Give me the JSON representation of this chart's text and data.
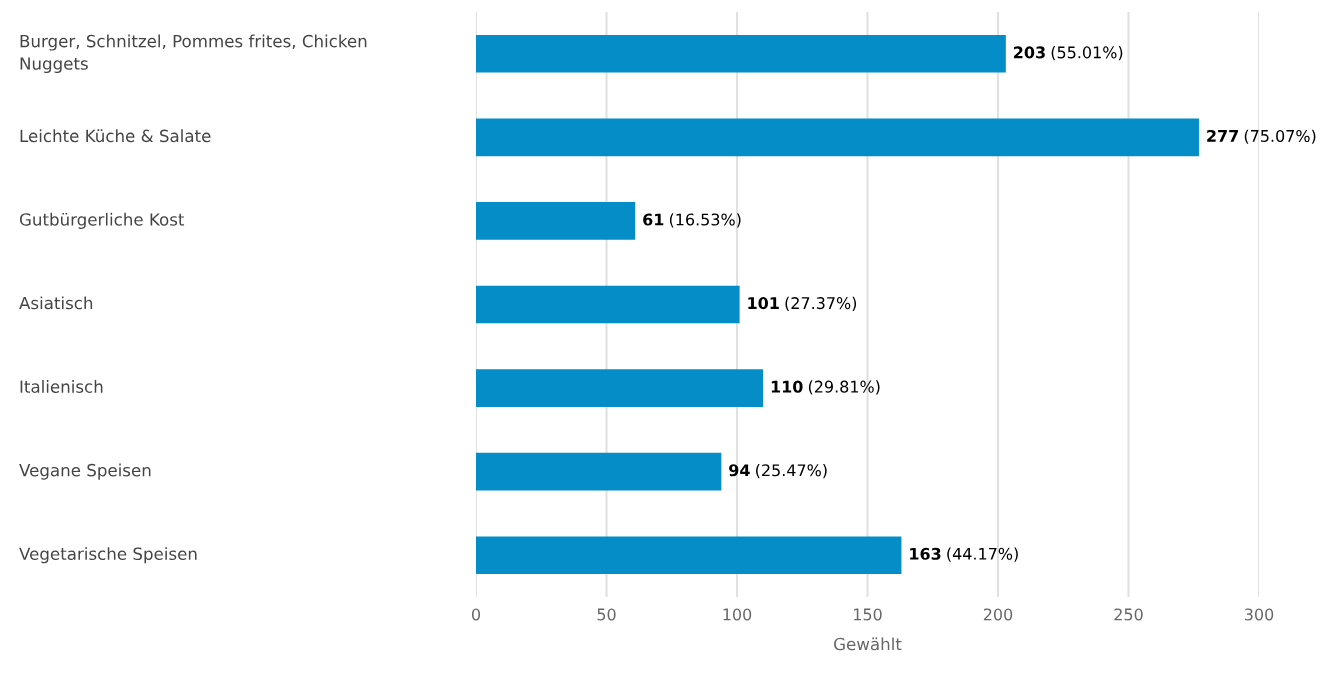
{
  "chart_data": {
    "type": "bar",
    "orientation": "horizontal",
    "categories": [
      "Burger, Schnitzel, Pommes frites, Chicken Nuggets",
      "Leichte Küche & Salate",
      "Gutbürgerliche Kost",
      "Asiatisch",
      "Italienisch",
      "Vegane Speisen",
      "Vegetarische Speisen"
    ],
    "values": [
      203,
      277,
      61,
      101,
      110,
      94,
      163
    ],
    "value_labels": [
      "203 (55.01%)",
      "277 (75.07%)",
      "61 (16.53%)",
      "101 (27.37%)",
      "110 (29.81%)",
      "94 (25.47%)",
      "163 (44.17%)"
    ],
    "color": "#058dc7",
    "xlabel": "Gewählt",
    "xlim": [
      0,
      300
    ],
    "xticks": [
      0,
      50,
      100,
      150,
      200,
      250,
      300
    ],
    "grid": "x"
  }
}
